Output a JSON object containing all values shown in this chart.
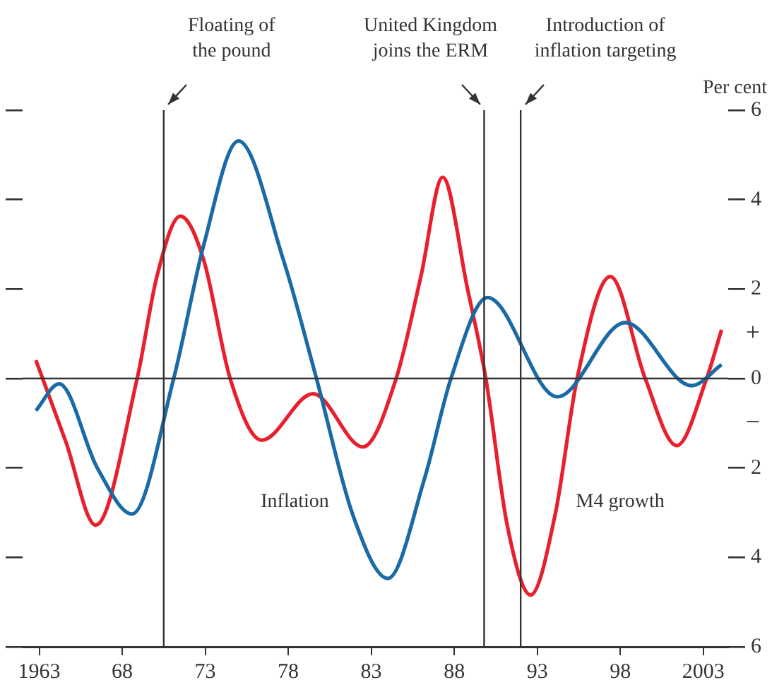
{
  "chart_data": {
    "type": "line",
    "ylabel": "Per cent",
    "xlim": [
      1962,
      2004.5
    ],
    "xticks": [
      {
        "value": 1963,
        "label": "1963"
      },
      {
        "value": 1968,
        "label": "68"
      },
      {
        "value": 1973,
        "label": "73"
      },
      {
        "value": 1978,
        "label": "78"
      },
      {
        "value": 1983,
        "label": "83"
      },
      {
        "value": 1988,
        "label": "88"
      },
      {
        "value": 1993,
        "label": "93"
      },
      {
        "value": 1998,
        "label": "98"
      },
      {
        "value": 2003,
        "label": "2003"
      }
    ],
    "ylim": [
      -6,
      6
    ],
    "yticks": [
      {
        "value": -6,
        "label": "6"
      },
      {
        "value": -4,
        "label": "4"
      },
      {
        "value": -2,
        "label": "2"
      },
      0,
      2,
      4,
      6
    ],
    "series": [
      {
        "name": "Inflation",
        "color": "#1a6aa6",
        "x": [
          1962.8,
          1964.2,
          1966.5,
          1968.6,
          1971.1,
          1972.9,
          1975.0,
          1977.7,
          1979.7,
          1981.9,
          1984.0,
          1986.2,
          1987.8,
          1990.0,
          1994.2,
          1998.3,
          2002.3,
          2004.1
        ],
        "values": [
          -0.72,
          -0.12,
          -2.0,
          -3.03,
          0,
          2.97,
          5.31,
          2.66,
          0,
          -3.06,
          -4.47,
          -2.25,
          0,
          1.81,
          -0.41,
          1.25,
          -0.16,
          0.31
        ]
      },
      {
        "name": "M4 growth",
        "color": "#e8202e",
        "x": [
          1962.8,
          1964.6,
          1966.4,
          1968.9,
          1970.1,
          1971.5,
          1972.9,
          1974.5,
          1976.4,
          1979.5,
          1982.5,
          1984.5,
          1986.0,
          1987.3,
          1988.8,
          1989.9,
          1991.2,
          1992.6,
          1994.1,
          1995.4,
          1997.4,
          1999.5,
          2001.4,
          2003.2,
          2004.1
        ],
        "values": [
          0.41,
          -1.41,
          -3.28,
          0,
          2.3,
          3.63,
          2.66,
          0,
          -1.38,
          -0.34,
          -1.53,
          0,
          2.3,
          4.5,
          2.0,
          0,
          -3.3,
          -4.84,
          -3.0,
          0,
          2.28,
          0,
          -1.5,
          0,
          1.09
        ]
      }
    ],
    "ref_lines": [
      {
        "axis": "x",
        "value": 1970.5,
        "label": "Floating of\nthe pound"
      },
      {
        "axis": "x",
        "value": 1989.8,
        "label": "United Kingdom\njoins the ERM"
      },
      {
        "axis": "x",
        "value": 1992.0,
        "label": "Introduction of\ninflation targeting"
      },
      {
        "axis": "y",
        "value": 0
      }
    ],
    "annotations": [
      "+",
      "−"
    ],
    "legend": false,
    "grid": false,
    "marker": "none",
    "line_style": "solid"
  }
}
